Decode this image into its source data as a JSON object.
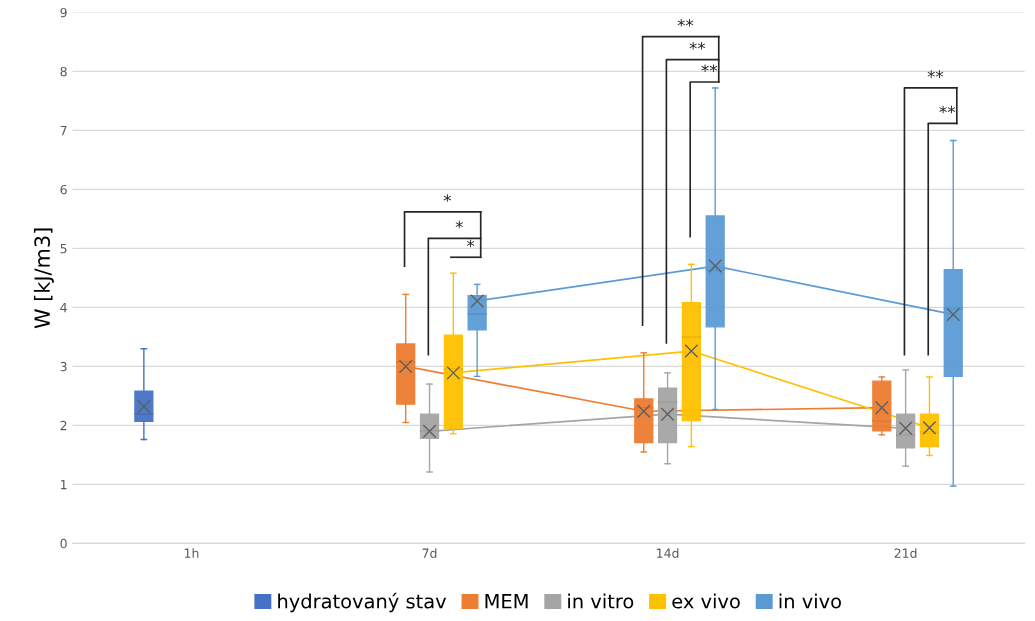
{
  "chart_data": {
    "type": "box",
    "ylabel": "W [kJ/m3]",
    "categories": [
      "1h",
      "7d",
      "14d",
      "21d"
    ],
    "ylim": [
      0,
      9
    ],
    "yticks": [
      0,
      1,
      2,
      3,
      4,
      5,
      6,
      7,
      8,
      9
    ],
    "grid": "y",
    "legend": "bottom",
    "marker": "cross",
    "line_style": "solid",
    "series": [
      {
        "name": "hydratovaný stav",
        "color": "#4472c4",
        "boxes": [
          {
            "low": 1.76,
            "q1": 2.07,
            "median": 2.2,
            "q3": 2.58,
            "high": 3.3,
            "mean": 2.32
          },
          null,
          null,
          null
        ]
      },
      {
        "name": "MEM",
        "color": "#ed7d31",
        "boxes": [
          null,
          {
            "low": 2.05,
            "q1": 2.36,
            "median": 3.07,
            "q3": 3.38,
            "high": 4.22,
            "mean": 3.0
          },
          {
            "low": 1.55,
            "q1": 1.71,
            "median": 2.29,
            "q3": 2.45,
            "high": 3.23,
            "mean": 2.24
          },
          {
            "low": 1.84,
            "q1": 1.91,
            "median": 2.08,
            "q3": 2.75,
            "high": 2.82,
            "mean": 2.3
          }
        ]
      },
      {
        "name": "in vitro",
        "color": "#a5a5a5",
        "boxes": [
          null,
          {
            "low": 1.21,
            "q1": 1.78,
            "median": 1.9,
            "q3": 2.19,
            "high": 2.7,
            "mean": 1.9
          },
          {
            "low": 1.35,
            "q1": 1.71,
            "median": 2.39,
            "q3": 2.63,
            "high": 2.89,
            "mean": 2.19
          },
          {
            "low": 1.31,
            "q1": 1.62,
            "median": 1.83,
            "q3": 2.19,
            "high": 2.94,
            "mean": 1.95
          }
        ]
      },
      {
        "name": "ex vivo",
        "color": "#ffc000",
        "boxes": [
          null,
          {
            "low": 1.86,
            "q1": 1.95,
            "median": 2.95,
            "q3": 3.53,
            "high": 4.58,
            "mean": 2.89
          },
          {
            "low": 1.64,
            "q1": 2.08,
            "median": 3.5,
            "q3": 4.08,
            "high": 4.73,
            "mean": 3.26
          },
          {
            "low": 1.49,
            "q1": 1.64,
            "median": 1.88,
            "q3": 2.19,
            "high": 2.82,
            "mean": 1.96
          }
        ]
      },
      {
        "name": "in vivo",
        "color": "#5b9bd5",
        "boxes": [
          null,
          {
            "low": 2.83,
            "q1": 3.62,
            "median": 3.89,
            "q3": 4.2,
            "high": 4.39,
            "mean": 4.11
          },
          {
            "low": 2.27,
            "q1": 3.67,
            "median": 4.64,
            "q3": 5.55,
            "high": 7.72,
            "mean": 4.7
          },
          {
            "low": 0.97,
            "q1": 2.83,
            "median": 3.98,
            "q3": 4.64,
            "high": 6.83,
            "mean": 3.88
          }
        ]
      },
      {
        "type": "line",
        "marker": "none",
        "color": "#ed7d31",
        "values": [
          null,
          3.0,
          2.24,
          2.3
        ]
      },
      {
        "type": "line",
        "marker": "none",
        "color": "#a5a5a5",
        "values": [
          null,
          1.9,
          2.19,
          1.95
        ]
      },
      {
        "type": "line",
        "marker": "none",
        "color": "#ffc000",
        "values": [
          null,
          2.89,
          3.26,
          1.96
        ]
      },
      {
        "type": "line",
        "marker": "none",
        "color": "#5b9bd5",
        "values": [
          null,
          4.11,
          4.7,
          3.88
        ]
      }
    ],
    "annotations": [
      "*",
      "*",
      "*",
      "**",
      "**",
      "**",
      "**",
      "**"
    ]
  }
}
